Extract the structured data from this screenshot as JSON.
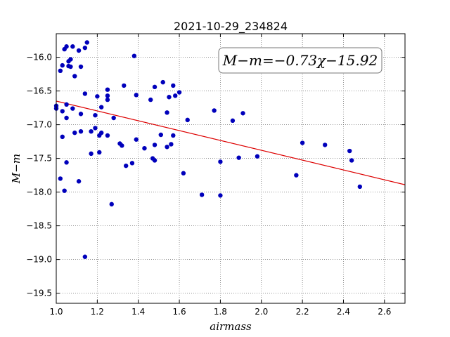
{
  "chart_data": {
    "type": "scatter",
    "title": "2021-10-29_234824",
    "xlabel": "airmass",
    "ylabel": "M−m",
    "xlim": [
      1.0,
      2.7
    ],
    "ylim": [
      -19.65,
      -15.65
    ],
    "y_inverted": true,
    "grid": true,
    "x_ticks": [
      1.0,
      1.2,
      1.4,
      1.6,
      1.8,
      2.0,
      2.2,
      2.4,
      2.6
    ],
    "x_tick_labels": [
      "1.0",
      "1.2",
      "1.4",
      "1.6",
      "1.8",
      "2.0",
      "2.2",
      "2.4",
      "2.6"
    ],
    "y_ticks": [
      -16.0,
      -16.5,
      -17.0,
      -17.5,
      -18.0,
      -18.5,
      -19.0,
      -19.5
    ],
    "y_tick_labels": [
      "−16.0",
      "−16.5",
      "−17.0",
      "−17.5",
      "−18.0",
      "−18.5",
      "−19.0",
      "−19.5"
    ],
    "annotation": "M−m=−0.73χ−15.92",
    "fit": {
      "slope": -0.73,
      "intercept": -15.92,
      "color": "#dd0000"
    },
    "marker_color": "#0000bb",
    "points": [
      [
        1.0,
        -16.72
      ],
      [
        1.0,
        -16.76
      ],
      [
        1.02,
        -17.8
      ],
      [
        1.03,
        -16.12
      ],
      [
        1.02,
        -16.2
      ],
      [
        1.03,
        -17.18
      ],
      [
        1.04,
        -15.88
      ],
      [
        1.05,
        -15.84
      ],
      [
        1.03,
        -16.8
      ],
      [
        1.05,
        -16.7
      ],
      [
        1.05,
        -16.9
      ],
      [
        1.06,
        -16.06
      ],
      [
        1.07,
        -16.03
      ],
      [
        1.06,
        -16.13
      ],
      [
        1.07,
        -16.14
      ],
      [
        1.08,
        -15.84
      ],
      [
        1.08,
        -16.76
      ],
      [
        1.09,
        -16.28
      ],
      [
        1.09,
        -17.12
      ],
      [
        1.05,
        -17.56
      ],
      [
        1.04,
        -17.98
      ],
      [
        1.11,
        -15.9
      ],
      [
        1.11,
        -17.84
      ],
      [
        1.12,
        -16.14
      ],
      [
        1.12,
        -16.84
      ],
      [
        1.12,
        -17.1
      ],
      [
        1.14,
        -15.86
      ],
      [
        1.15,
        -15.78
      ],
      [
        1.14,
        -16.54
      ],
      [
        1.17,
        -17.1
      ],
      [
        1.17,
        -17.43
      ],
      [
        1.19,
        -16.86
      ],
      [
        1.19,
        -17.05
      ],
      [
        1.2,
        -16.58
      ],
      [
        1.21,
        -17.16
      ],
      [
        1.21,
        -17.41
      ],
      [
        1.22,
        -17.12
      ],
      [
        1.22,
        -16.74
      ],
      [
        1.25,
        -16.48
      ],
      [
        1.25,
        -16.57
      ],
      [
        1.25,
        -16.63
      ],
      [
        1.25,
        -17.16
      ],
      [
        1.28,
        -16.9
      ],
      [
        1.31,
        -17.28
      ],
      [
        1.32,
        -17.31
      ],
      [
        1.33,
        -16.42
      ],
      [
        1.34,
        -17.61
      ],
      [
        1.27,
        -18.18
      ],
      [
        1.14,
        -18.96
      ],
      [
        1.38,
        -15.98
      ],
      [
        1.39,
        -16.56
      ],
      [
        1.37,
        -17.57
      ],
      [
        1.39,
        -17.22
      ],
      [
        1.43,
        -17.35
      ],
      [
        1.46,
        -16.63
      ],
      [
        1.47,
        -17.5
      ],
      [
        1.48,
        -17.53
      ],
      [
        1.48,
        -17.3
      ],
      [
        1.48,
        -16.44
      ],
      [
        1.51,
        -17.15
      ],
      [
        1.52,
        -16.37
      ],
      [
        1.54,
        -17.33
      ],
      [
        1.54,
        -16.82
      ],
      [
        1.55,
        -16.59
      ],
      [
        1.56,
        -17.29
      ],
      [
        1.57,
        -16.42
      ],
      [
        1.57,
        -17.16
      ],
      [
        1.58,
        -16.57
      ],
      [
        1.6,
        -16.52
      ],
      [
        1.62,
        -17.72
      ],
      [
        1.64,
        -16.93
      ],
      [
        1.71,
        -18.04
      ],
      [
        1.77,
        -16.79
      ],
      [
        1.8,
        -18.05
      ],
      [
        1.8,
        -17.55
      ],
      [
        1.86,
        -16.94
      ],
      [
        1.89,
        -17.49
      ],
      [
        1.91,
        -16.83
      ],
      [
        1.98,
        -17.47
      ],
      [
        2.17,
        -17.75
      ],
      [
        2.2,
        -17.27
      ],
      [
        2.31,
        -17.3
      ],
      [
        2.43,
        -17.39
      ],
      [
        2.44,
        -17.53
      ],
      [
        2.48,
        -17.92
      ]
    ]
  }
}
